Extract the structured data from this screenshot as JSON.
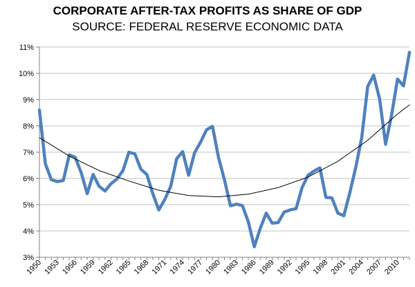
{
  "chart_data": {
    "type": "line",
    "title": "CORPORATE AFTER-TAX PROFITS AS SHARE OF GDP",
    "subtitle": "SOURCE: FEDERAL RESERVE ECONOMIC DATA",
    "xlabel": "",
    "ylabel": "",
    "ylim": [
      3,
      11
    ],
    "xlim": [
      1950,
      2012
    ],
    "x_tick_labels": [
      "1950",
      "1953",
      "1956",
      "1959",
      "1962",
      "1965",
      "1968",
      "1971",
      "1974",
      "1977",
      "1980",
      "1983",
      "1986",
      "1989",
      "1992",
      "1995",
      "1998",
      "2001",
      "2004",
      "2007",
      "2010"
    ],
    "y_tick_labels": [
      "3%",
      "4%",
      "5%",
      "6%",
      "7%",
      "8%",
      "9%",
      "10%",
      "11%"
    ],
    "y_ticks": [
      3,
      4,
      5,
      6,
      7,
      8,
      9,
      10,
      11
    ],
    "grid": "horizontal",
    "legend": "none",
    "series": [
      {
        "color": "#4F81BD",
        "x": [
          1950,
          1951,
          1952,
          1953,
          1954,
          1955,
          1956,
          1957,
          1958,
          1959,
          1960,
          1961,
          1962,
          1963,
          1964,
          1965,
          1966,
          1967,
          1968,
          1969,
          1970,
          1971,
          1972,
          1973,
          1974,
          1975,
          1976,
          1977,
          1978,
          1979,
          1980,
          1981,
          1982,
          1983,
          1984,
          1985,
          1986,
          1987,
          1988,
          1989,
          1990,
          1991,
          1992,
          1993,
          1994,
          1995,
          1996,
          1997,
          1998,
          1999,
          2000,
          2001,
          2002,
          2003,
          2004,
          2005,
          2006,
          2007,
          2008,
          2009,
          2010,
          2011,
          2012
        ],
        "values": [
          8.6,
          6.55,
          5.95,
          5.88,
          5.92,
          6.9,
          6.8,
          6.22,
          5.42,
          6.15,
          5.7,
          5.52,
          5.8,
          5.98,
          6.3,
          7.0,
          6.93,
          6.35,
          6.15,
          5.42,
          4.8,
          5.2,
          5.7,
          6.75,
          7.02,
          6.12,
          6.98,
          7.38,
          7.85,
          7.98,
          6.8,
          5.95,
          4.96,
          5.02,
          4.97,
          4.35,
          3.4,
          4.1,
          4.68,
          4.3,
          4.32,
          4.72,
          4.8,
          4.85,
          5.65,
          6.12,
          6.28,
          6.4,
          5.28,
          5.26,
          4.68,
          4.58,
          5.45,
          6.42,
          7.55,
          9.5,
          9.93,
          9.02,
          7.3,
          8.4,
          9.78,
          9.52,
          10.8
        ]
      },
      {
        "color": "#000000",
        "x": [
          1950,
          1955,
          1960,
          1965,
          1970,
          1975,
          1980,
          1985,
          1990,
          1995,
          2000,
          2005,
          2010,
          2012
        ],
        "values": [
          7.55,
          6.85,
          6.3,
          5.9,
          5.55,
          5.35,
          5.3,
          5.4,
          5.65,
          6.05,
          6.65,
          7.45,
          8.45,
          8.8
        ]
      }
    ]
  }
}
